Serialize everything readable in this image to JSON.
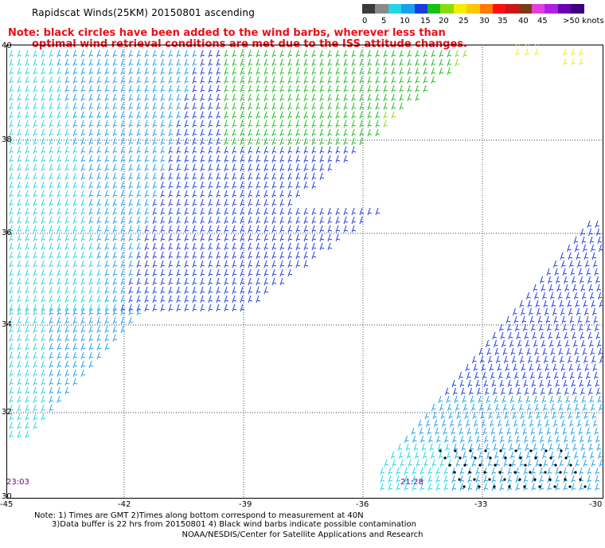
{
  "header": {
    "title": "Rapidscat Winds(25KM) 20150801 ascending",
    "note_line1": "Note: black circles have been added to the wind barbs, wherever less than",
    "note_line2": "optimal wind retrieval conditions are met due to the ISS attitude changes."
  },
  "speed_scale": {
    "colors": [
      "#3a3a3a",
      "#8a8a8a",
      "#22d6e8",
      "#1aa0f0",
      "#1a3ce0",
      "#16c016",
      "#8adc10",
      "#f0f000",
      "#ffc800",
      "#ff7a00",
      "#ff1010",
      "#c81818",
      "#7a3a14",
      "#e040e0",
      "#b020e0",
      "#6a00b0",
      "#3a0080"
    ],
    "labels": [
      "0",
      "5",
      "10",
      "15",
      "20",
      "25",
      "30",
      "35",
      "40",
      "45",
      ">50 knots"
    ]
  },
  "map": {
    "lat_labels": [
      "40",
      "38",
      "36",
      "34",
      "32",
      "30"
    ],
    "lon_labels": [
      "-45",
      "-42",
      "-39",
      "-36",
      "-33",
      "-30"
    ],
    "time_labels": [
      "23:03",
      "21:28"
    ]
  },
  "footer": {
    "note_line1": "Note: 1) Times are GMT 2)Times along bottom correspond to measurement at 40N",
    "note_line2": "3)Data buffer is 22 hrs from 20150801 4) Black wind barbs indicate possible contamination",
    "credit": "NOAA/NESDIS/Center for Satellite Applications and Research"
  }
}
